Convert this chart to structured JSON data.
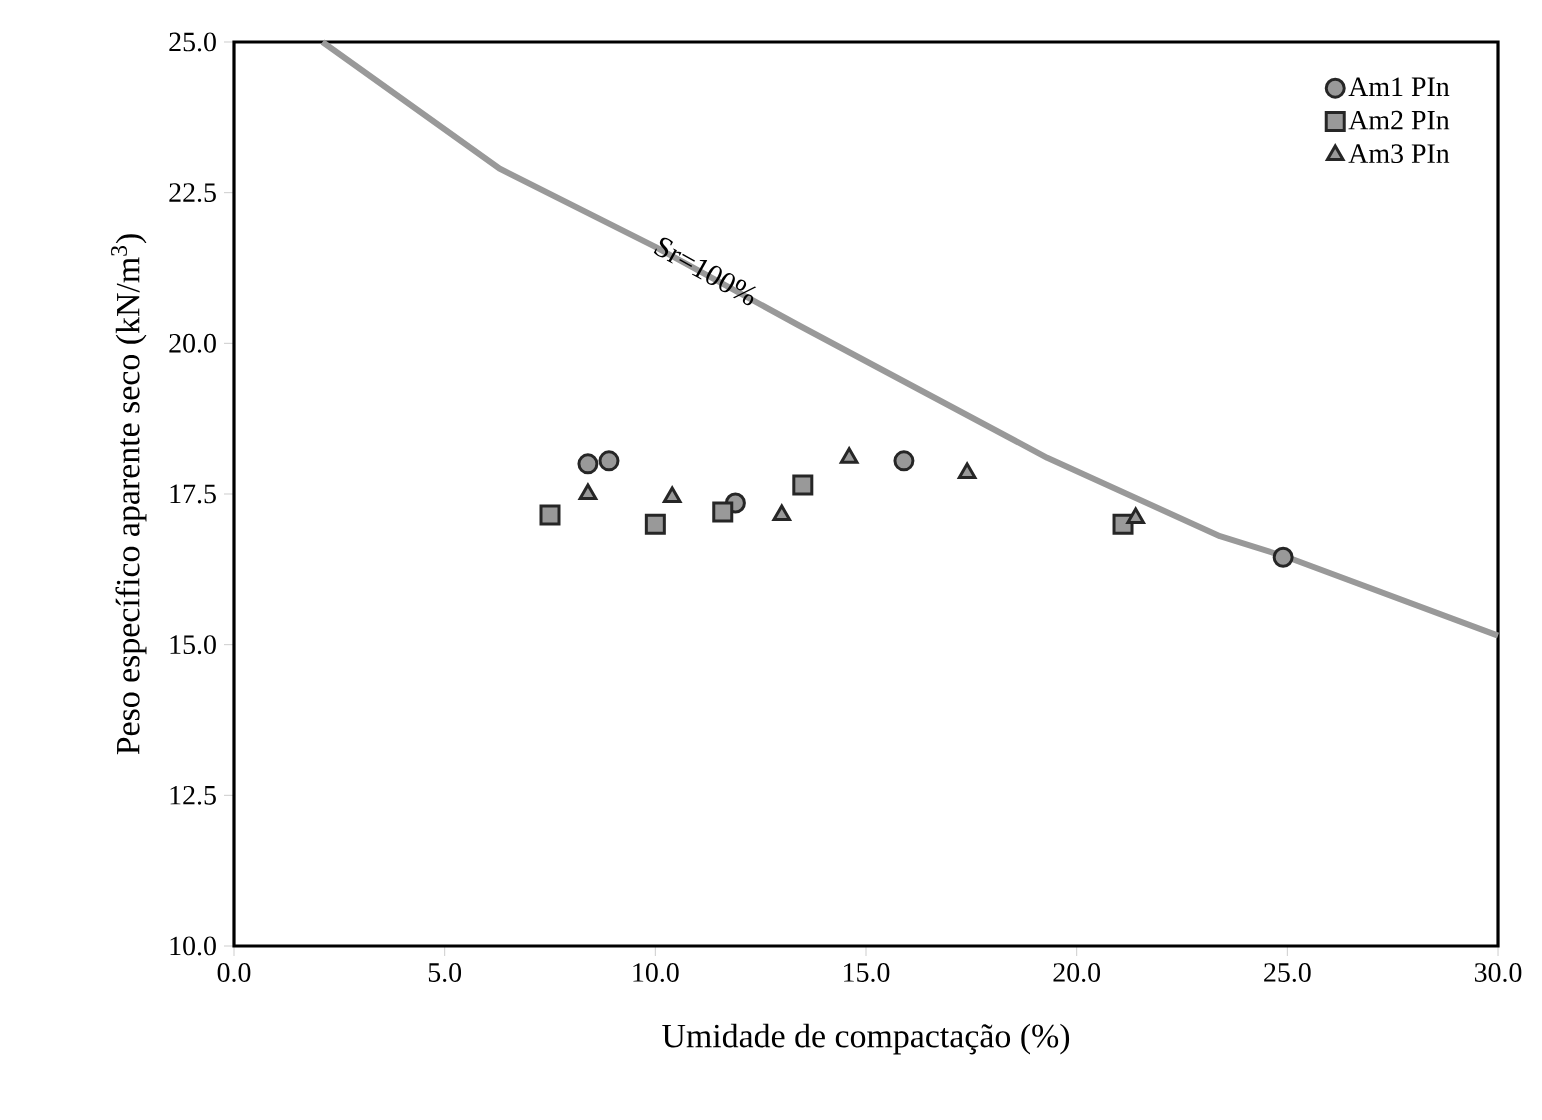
{
  "chart_data": {
    "type": "scatter",
    "xlabel": "Umidade de compactação (%)",
    "ylabel": "Peso específico aparente seco (kN/m$^{3}$)",
    "xlim": [
      0,
      30
    ],
    "ylim": [
      10,
      25
    ],
    "xticks": [
      {
        "value": 0,
        "label": "0.0"
      },
      {
        "value": 5,
        "label": "5.0"
      },
      {
        "value": 10,
        "label": "10.0"
      },
      {
        "value": 15,
        "label": "15.0"
      },
      {
        "value": 20,
        "label": "20.0"
      },
      {
        "value": 25,
        "label": "25.0"
      },
      {
        "value": 30,
        "label": "30.0"
      }
    ],
    "yticks": [
      {
        "value": 10,
        "label": "10.0"
      },
      {
        "value": 12.5,
        "label": "12.5"
      },
      {
        "value": 15,
        "label": "15.0"
      },
      {
        "value": 17.5,
        "label": "17.5"
      },
      {
        "value": 20,
        "label": "20.0"
      },
      {
        "value": 22.5,
        "label": "22.5"
      },
      {
        "value": 25,
        "label": "25.0"
      }
    ],
    "grid": false,
    "legend": "top right",
    "series": [
      {
        "name": "Am1 PIn",
        "color": "#999999",
        "marker": "circle",
        "x": [
          8.4,
          8.9,
          11.9,
          15.9,
          24.9
        ],
        "values": [
          18.0,
          18.05,
          17.35,
          18.05,
          16.45
        ]
      },
      {
        "name": "Am2 PIn",
        "color": "#999999",
        "marker": "square",
        "x": [
          7.5,
          10.0,
          11.6,
          13.5,
          21.1
        ],
        "values": [
          17.15,
          17.0,
          17.2,
          17.65,
          17.0
        ]
      },
      {
        "name": "Am3 PIn",
        "color": "#999999",
        "marker": "triangle",
        "x": [
          8.4,
          10.4,
          13.0,
          14.6,
          17.4,
          21.4
        ],
        "values": [
          17.5,
          17.45,
          17.15,
          18.1,
          17.85,
          17.1
        ]
      },
      {
        "type": "line",
        "color": "#999999",
        "marker": "none",
        "x": [
          2.1,
          6.3,
          10.0,
          13.4,
          19.3,
          23.4,
          25.0,
          30.0
        ],
        "values": [
          25.0,
          22.9,
          21.6,
          20.3,
          18.1,
          16.8,
          16.45,
          15.15
        ]
      }
    ],
    "annotations": [
      {
        "text": "Sr=100%",
        "x": 11.2,
        "y": 21.2
      }
    ]
  }
}
